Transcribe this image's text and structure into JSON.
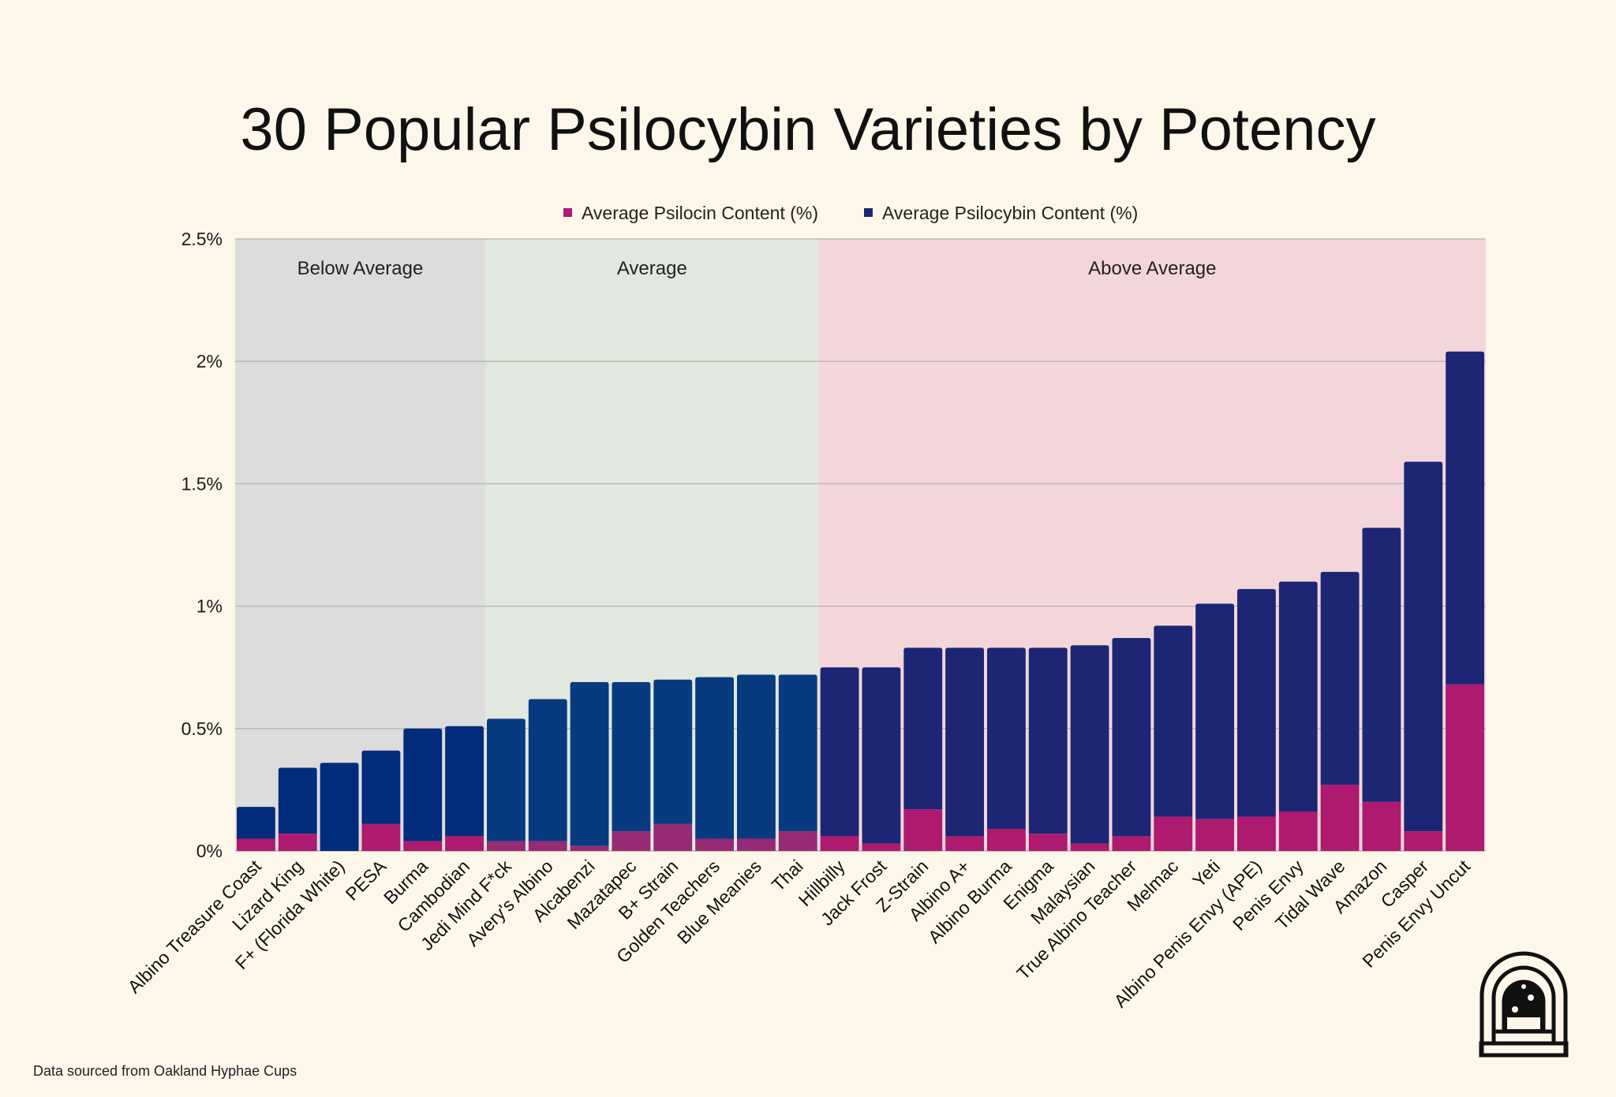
{
  "chart_data": {
    "type": "bar",
    "stacked": true,
    "title": "30 Popular Psilocybin Varieties by Potency",
    "xlabel": "",
    "ylabel": "",
    "ylim": [
      0,
      2.5
    ],
    "y_ticks": [
      "0%",
      "0.5%",
      "1%",
      "1.5%",
      "2%",
      "2.5%"
    ],
    "y_tick_values": [
      0,
      0.5,
      1,
      1.5,
      2,
      2.5
    ],
    "grid": true,
    "legend_position": "top-center",
    "categories": [
      "Albino Treasure Coast",
      "Lizard King",
      "F+ (Florida White)",
      "PESA",
      "Burma",
      "Cambodian",
      "Jedi Mind F*ck",
      "Avery's Albino",
      "Alcabenzi",
      "Mazatapec",
      "B+ Strain",
      "Golden Teachers",
      "Blue Meanies",
      "Thai",
      "Hillbilly",
      "Jack Frost",
      "Z-Strain",
      "Albino A+",
      "Albino Burma",
      "Enigma",
      "Malaysian",
      "True Albino Teacher",
      "Melmac",
      "Yeti",
      "Albino Penis Envy (APE)",
      "Penis Envy",
      "Tidal Wave",
      "Amazon",
      "Casper",
      "Penis Envy Uncut"
    ],
    "series": [
      {
        "name": "Average Psilocin Content (%)",
        "color": "#ad1a6f",
        "values": [
          0.05,
          0.07,
          0.0,
          0.11,
          0.04,
          0.06,
          0.04,
          0.04,
          0.02,
          0.08,
          0.11,
          0.05,
          0.05,
          0.08,
          0.06,
          0.03,
          0.17,
          0.06,
          0.09,
          0.07,
          0.03,
          0.06,
          0.14,
          0.13,
          0.14,
          0.16,
          0.27,
          0.2,
          0.08,
          0.68
        ]
      },
      {
        "name": "Average Psilocybin Content (%)",
        "color": "#1c2675",
        "values": [
          0.13,
          0.27,
          0.36,
          0.3,
          0.46,
          0.45,
          0.5,
          0.58,
          0.67,
          0.61,
          0.59,
          0.66,
          0.67,
          0.64,
          0.69,
          0.72,
          0.66,
          0.77,
          0.74,
          0.76,
          0.81,
          0.81,
          0.78,
          0.88,
          0.93,
          0.94,
          0.87,
          1.12,
          1.51,
          1.36
        ]
      }
    ],
    "regions": [
      {
        "label": "Below Average",
        "from": 0,
        "to": 5,
        "color": "#dcdcdc"
      },
      {
        "label": "Average",
        "from": 6,
        "to": 13,
        "color": "#e1e8df"
      },
      {
        "label": "Above Average",
        "from": 14,
        "to": 29,
        "color": "#f3d6da"
      }
    ]
  },
  "footnote": "Data sourced from Oakland Hyphae Cups",
  "logo": {
    "icon": "arch-doorway-logo-icon"
  },
  "colors": {
    "background": "#fdf7e9",
    "psilocin": "#ad1a6f",
    "psilocybin": "#1c2675"
  }
}
